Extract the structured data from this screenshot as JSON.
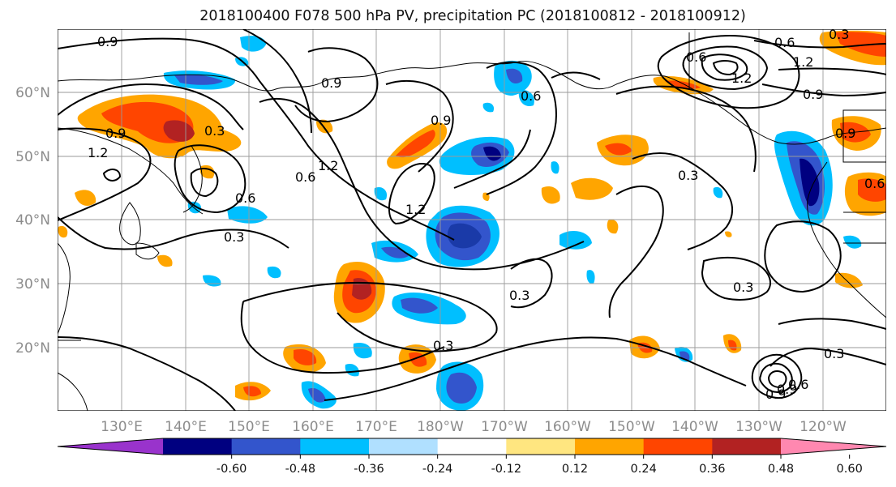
{
  "title": "2018100400 F078 500 hPa PV, precipitation PC (2018100812 - 2018100912)",
  "lat_labels": [
    "60°N",
    "50°N",
    "40°N",
    "30°N",
    "20°N"
  ],
  "lon_labels": [
    "130°E",
    "140°E",
    "150°E",
    "160°E",
    "170°E",
    "180°W",
    "170°W",
    "160°W",
    "150°W",
    "140°W",
    "130°W",
    "120°W"
  ],
  "contour_labels": [
    "0.9",
    "0.3",
    "0.6",
    "1.2",
    "0.9",
    "0.6",
    "1.2",
    "0.9",
    "1.2",
    "0.6",
    "0.3",
    "0.3",
    "0.3",
    "0.3",
    "0.3",
    "0.3",
    "0.9",
    "0.9",
    "0.6",
    "1.2",
    "0.9",
    "0.9",
    "1.2",
    "0.6",
    "0.3",
    "0.6",
    "0.9",
    "0.6"
  ],
  "colorbar": {
    "ticks": [
      "-0.60",
      "-0.48",
      "-0.36",
      "-0.24",
      "-0.12",
      "0.12",
      "0.24",
      "0.36",
      "0.48",
      "0.60"
    ],
    "colors": [
      "#9933cc",
      "#000080",
      "#3355cc",
      "#00bfff",
      "#b0e0ff",
      "#ffffff",
      "#ffe680",
      "#ffa500",
      "#ff4500",
      "#b22222",
      "#ff88b0"
    ]
  },
  "shading_colors": {
    "purple": "#9933cc",
    "navy": "#000080",
    "blue": "#3355cc",
    "sky": "#00bfff",
    "lightsky": "#b0e0ff",
    "yellow": "#ffe680",
    "orange": "#ffa500",
    "redorange": "#ff4500",
    "darkred": "#b22222",
    "pink": "#ff88b0"
  }
}
